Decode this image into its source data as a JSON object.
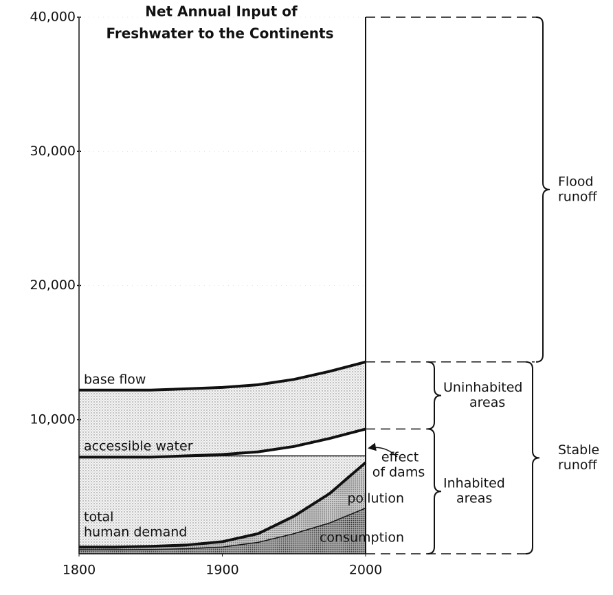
{
  "chart_data": {
    "type": "area",
    "title": [
      "Net Annual Input of",
      "Freshwater to the Continents"
    ],
    "x": [
      1800,
      1825,
      1850,
      1875,
      1900,
      1925,
      1950,
      1975,
      2000
    ],
    "series": [
      {
        "name": "base flow",
        "values": [
          12200,
          12200,
          12200,
          12300,
          12400,
          12600,
          13000,
          13600,
          14300
        ]
      },
      {
        "name": "accessible water",
        "values": [
          7200,
          7200,
          7200,
          7300,
          7400,
          7600,
          8000,
          8600,
          9300
        ]
      },
      {
        "values": [
          7200,
          7200,
          7200,
          7250,
          7300,
          7300,
          7300,
          7300,
          7300
        ]
      },
      {
        "values": [
          500,
          500,
          550,
          650,
          900,
          1500,
          2800,
          4500,
          6800
        ]
      },
      {
        "name": "consumption",
        "values": [
          300,
          300,
          320,
          380,
          500,
          850,
          1500,
          2300,
          3400
        ]
      }
    ],
    "annotations": [
      {
        "text": "total"
      },
      {
        "text": "human demand"
      },
      {
        "text": "pollution"
      },
      {
        "text": "effect"
      },
      {
        "text": "of dams"
      }
    ],
    "brackets": [
      {
        "lines": [
          "Flood",
          "runoff"
        ]
      },
      {
        "lines": [
          "Uninhabited",
          "areas"
        ]
      },
      {
        "lines": [
          "Inhabited",
          "areas"
        ]
      },
      {
        "lines": [
          "Stable",
          "runoff"
        ]
      }
    ],
    "xlim": [
      1800,
      2000
    ],
    "xticks": [
      1800,
      1900,
      2000
    ],
    "ylim": [
      0,
      40000
    ],
    "yticks": [
      {
        "value": 10000,
        "label": "10,000"
      },
      {
        "value": 20000,
        "label": "20,000"
      },
      {
        "value": 30000,
        "label": "30,000"
      },
      {
        "value": 40000,
        "label": "40,000"
      }
    ]
  }
}
